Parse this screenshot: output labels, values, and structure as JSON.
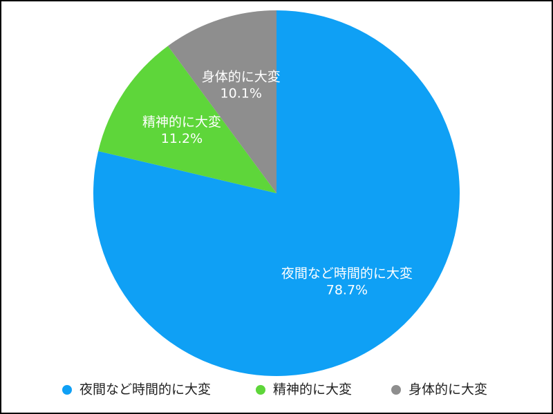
{
  "chart_data": {
    "type": "pie",
    "categories": [
      "夜間など時間的に大変",
      "精神的に大変",
      "身体的に大変"
    ],
    "values": [
      78.7,
      11.2,
      10.1
    ],
    "value_labels": [
      "78.7%",
      "11.2%",
      "10.1%"
    ],
    "colors": [
      "#0fa0f5",
      "#5ed63a",
      "#8e8e8e"
    ]
  }
}
